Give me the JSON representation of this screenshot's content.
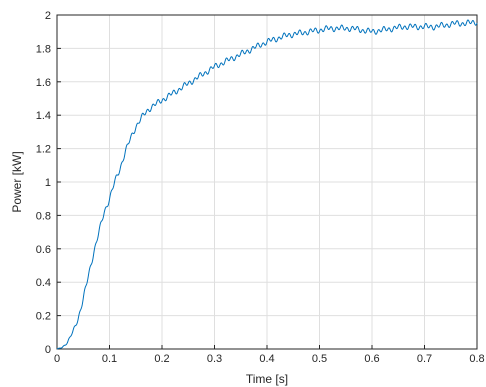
{
  "chart_data": {
    "type": "line",
    "title": "",
    "xlabel": "Time [s]",
    "ylabel": "Power [kW]",
    "xlim": [
      0,
      0.8
    ],
    "ylim": [
      0,
      2
    ],
    "grid": true,
    "x_ticks": [
      "0",
      "0.1",
      "0.2",
      "0.3",
      "0.4",
      "0.5",
      "0.6",
      "0.7",
      "0.8"
    ],
    "y_ticks": [
      "0",
      "0.2",
      "0.4",
      "0.6",
      "0.8",
      "1",
      "1.2",
      "1.4",
      "1.6",
      "1.8",
      "2"
    ],
    "line_color": "#0072BD",
    "series": [
      {
        "x": [
          0,
          0.01,
          0.02,
          0.03,
          0.04,
          0.05,
          0.06,
          0.07,
          0.08,
          0.09,
          0.1,
          0.11,
          0.12,
          0.13,
          0.14,
          0.15,
          0.16,
          0.17,
          0.18,
          0.19,
          0.2,
          0.22,
          0.24,
          0.26,
          0.28,
          0.3,
          0.32,
          0.34,
          0.36,
          0.38,
          0.4,
          0.42,
          0.44,
          0.46,
          0.48,
          0.5,
          0.52,
          0.54,
          0.56,
          0.58,
          0.6,
          0.62,
          0.64,
          0.66,
          0.68,
          0.7,
          0.72,
          0.74,
          0.76,
          0.78,
          0.8
        ],
        "y": [
          0,
          0.01,
          0.04,
          0.1,
          0.18,
          0.3,
          0.44,
          0.58,
          0.7,
          0.82,
          0.9,
          1.0,
          1.08,
          1.18,
          1.26,
          1.33,
          1.38,
          1.42,
          1.45,
          1.47,
          1.49,
          1.53,
          1.57,
          1.61,
          1.65,
          1.69,
          1.72,
          1.75,
          1.78,
          1.81,
          1.84,
          1.86,
          1.88,
          1.89,
          1.9,
          1.91,
          1.92,
          1.92,
          1.92,
          1.91,
          1.9,
          1.91,
          1.92,
          1.93,
          1.93,
          1.93,
          1.93,
          1.94,
          1.95,
          1.95,
          1.96
        ]
      }
    ]
  }
}
